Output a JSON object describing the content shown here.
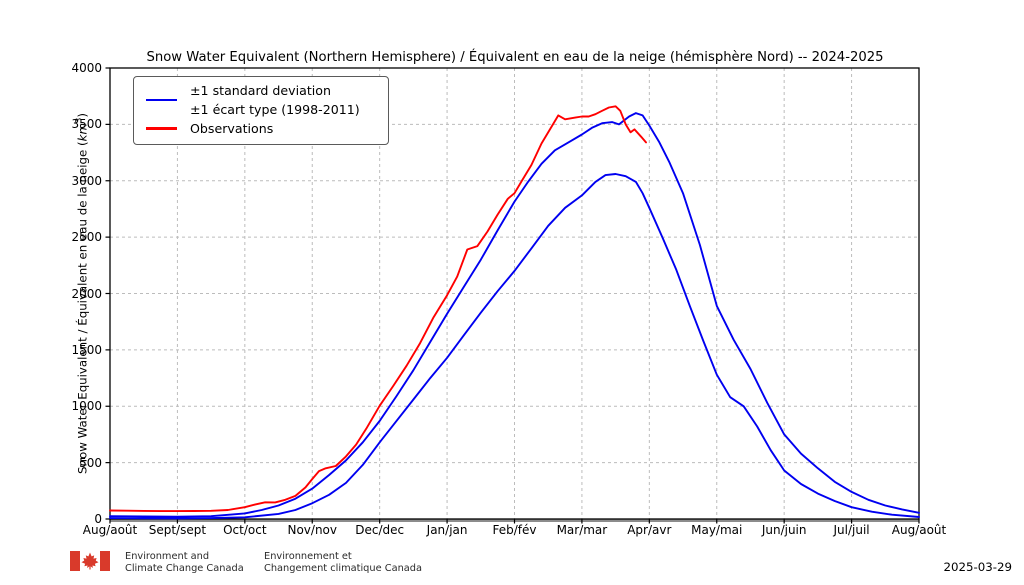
{
  "title": "Snow Water Equivalent (Northern Hemisphere) / Équivalent en eau de la neige (hémisphère Nord) -- 2024-2025",
  "y_axis": {
    "label_prefix": "Snow Water Equivalent / Équivalent en eau de la neige (",
    "unit": "km",
    "unit_exponent": "3",
    "label_suffix": ")"
  },
  "legend": {
    "std_label_line1": "±1 standard deviation",
    "std_label_line2": "±1 écart type (1998-2011)",
    "obs_label": "Observations"
  },
  "footer": {
    "logo": "canada-flag-icon",
    "org_en": [
      "Environment and",
      "Climate Change Canada"
    ],
    "org_fr": [
      "Environnement et",
      "Changement climatique Canada"
    ],
    "date": "2025-03-29"
  },
  "colors": {
    "observations": "#ff0000",
    "std_band": "#0000f0",
    "grid": "#bcbcbc",
    "frame": "#000000",
    "bottom_spine": "#8c8c8c",
    "flag_red": "#d93a2b"
  },
  "chart_data": {
    "type": "line",
    "title": "Snow Water Equivalent (Northern Hemisphere) / Équivalent en eau de la neige (hémisphère Nord) -- 2024-2025",
    "xlabel": "",
    "ylabel": "Snow Water Equivalent / Équivalent en eau de la neige (km³)",
    "ylim": [
      0,
      4000
    ],
    "yticks": [
      0,
      500,
      1000,
      1500,
      2000,
      2500,
      3000,
      3500,
      4000
    ],
    "x_months_range": [
      0,
      12
    ],
    "xtick_labels": [
      "Aug/août",
      "Sept/sept",
      "Oct/oct",
      "Nov/nov",
      "Dec/dec",
      "Jan/jan",
      "Feb/fév",
      "Mar/mar",
      "Apr/avr",
      "May/mai",
      "Jun/juin",
      "Jul/juil",
      "Aug/août"
    ],
    "grid": true,
    "legend_position": "upper-left",
    "units": "km³",
    "series": [
      {
        "name": "mean-plus-one-std",
        "legend": "±1 standard deviation / ±1 écart type (1998-2011)",
        "color": "#0000f0",
        "x_months": [
          0,
          0.5,
          1,
          1.5,
          2,
          2.25,
          2.5,
          2.75,
          3,
          3.25,
          3.5,
          3.75,
          4,
          4.25,
          4.5,
          4.75,
          5,
          5.25,
          5.5,
          5.75,
          6,
          6.2,
          6.4,
          6.6,
          6.8,
          7,
          7.15,
          7.3,
          7.45,
          7.55,
          7.7,
          7.8,
          7.9,
          8,
          8.15,
          8.3,
          8.5,
          8.75,
          9,
          9.25,
          9.5,
          9.75,
          10,
          10.25,
          10.5,
          10.75,
          11,
          11.25,
          11.5,
          11.75,
          12
        ],
        "values": [
          25,
          22,
          20,
          25,
          50,
          80,
          120,
          180,
          270,
          390,
          520,
          680,
          870,
          1090,
          1320,
          1570,
          1820,
          2060,
          2300,
          2560,
          2815,
          2990,
          3150,
          3270,
          3340,
          3410,
          3470,
          3510,
          3520,
          3500,
          3570,
          3600,
          3580,
          3490,
          3340,
          3160,
          2890,
          2430,
          1890,
          1590,
          1330,
          1030,
          750,
          580,
          450,
          330,
          240,
          170,
          120,
          85,
          55
        ]
      },
      {
        "name": "mean-minus-one-std",
        "legend": "±1 standard deviation / ±1 écart type (1998-2011)",
        "color": "#0000f0",
        "x_months": [
          0,
          0.5,
          1,
          1.5,
          2,
          2.5,
          2.75,
          3,
          3.25,
          3.5,
          3.75,
          4,
          4.25,
          4.5,
          4.75,
          5,
          5.25,
          5.5,
          5.75,
          6,
          6.25,
          6.5,
          6.75,
          7,
          7.2,
          7.35,
          7.5,
          7.65,
          7.8,
          7.9,
          8,
          8.2,
          8.4,
          8.6,
          8.8,
          9,
          9.2,
          9.4,
          9.6,
          9.8,
          10,
          10.25,
          10.5,
          10.75,
          11,
          11.3,
          11.6,
          12
        ],
        "values": [
          8,
          6,
          5,
          8,
          15,
          45,
          80,
          140,
          215,
          320,
          480,
          680,
          870,
          1060,
          1250,
          1430,
          1630,
          1830,
          2020,
          2200,
          2400,
          2600,
          2760,
          2870,
          2990,
          3050,
          3060,
          3040,
          2990,
          2890,
          2760,
          2490,
          2210,
          1890,
          1580,
          1280,
          1080,
          1000,
          820,
          610,
          430,
          310,
          225,
          160,
          105,
          65,
          38,
          18
        ]
      },
      {
        "name": "observations",
        "legend": "Observations",
        "color": "#ff0000",
        "x_months": [
          0,
          0.25,
          0.5,
          0.75,
          1,
          1.25,
          1.5,
          1.75,
          2,
          2.15,
          2.3,
          2.45,
          2.6,
          2.75,
          2.9,
          3,
          3.1,
          3.2,
          3.35,
          3.5,
          3.65,
          3.8,
          4,
          4.2,
          4.4,
          4.6,
          4.8,
          5,
          5.15,
          5.3,
          5.45,
          5.6,
          5.75,
          5.9,
          6,
          6.1,
          6.25,
          6.4,
          6.55,
          6.65,
          6.75,
          6.9,
          7,
          7.1,
          7.2,
          7.3,
          7.4,
          7.5,
          7.57,
          7.65,
          7.72,
          7.78,
          7.88,
          7.95
        ],
        "values": [
          75,
          74,
          72,
          70,
          70,
          71,
          73,
          80,
          105,
          128,
          148,
          147,
          170,
          205,
          280,
          355,
          425,
          450,
          470,
          555,
          660,
          800,
          1005,
          1180,
          1360,
          1560,
          1790,
          1985,
          2150,
          2390,
          2420,
          2550,
          2700,
          2840,
          2890,
          2990,
          3140,
          3330,
          3480,
          3580,
          3545,
          3560,
          3570,
          3570,
          3590,
          3620,
          3650,
          3660,
          3620,
          3500,
          3430,
          3455,
          3390,
          3340
        ]
      }
    ]
  }
}
